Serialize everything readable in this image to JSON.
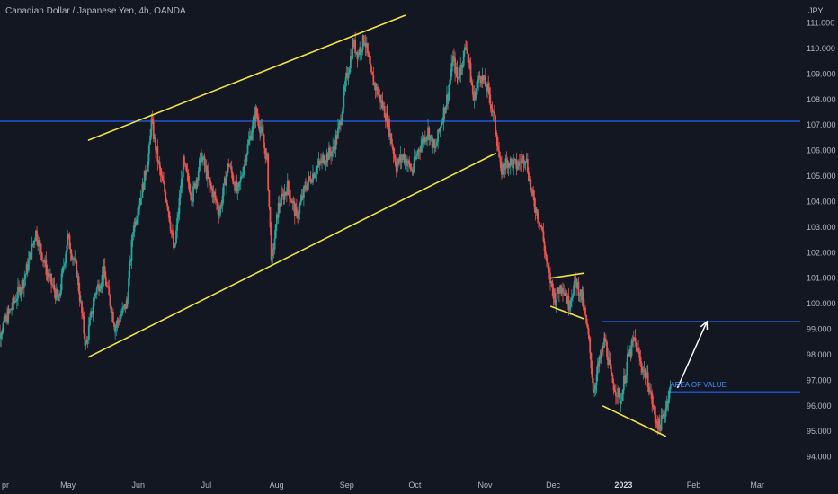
{
  "header": {
    "title": "Canadian Dollar / Japanese Yen, 4h, OANDA",
    "currency": "JPY"
  },
  "colors": {
    "background": "#131722",
    "up_candle": "#26a69a",
    "down_candle": "#ef5350",
    "trendline": "#f0e442",
    "level_line": "#2962ff",
    "arrow": "#ffffff",
    "annotation": "#4a8cff",
    "axis_text": "#b2b5be"
  },
  "chart_data": {
    "type": "candlestick",
    "symbol": "CADJPY",
    "timeframe": "4h",
    "broker": "OANDA",
    "ylim": [
      93.6,
      111.9
    ],
    "y_ticks": [
      {
        "value": 111.0,
        "label": "111.000"
      },
      {
        "value": 110.0,
        "label": "110.000"
      },
      {
        "value": 109.0,
        "label": "109.000"
      },
      {
        "value": 108.0,
        "label": "108.000"
      },
      {
        "value": 107.0,
        "label": "107.000"
      },
      {
        "value": 106.0,
        "label": "106.000"
      },
      {
        "value": 105.0,
        "label": "105.000"
      },
      {
        "value": 104.0,
        "label": "104.000"
      },
      {
        "value": 103.0,
        "label": "103.000"
      },
      {
        "value": 102.0,
        "label": "102.000"
      },
      {
        "value": 101.0,
        "label": "101.000"
      },
      {
        "value": 100.0,
        "label": "100.000"
      },
      {
        "value": 99.0,
        "label": "99.000"
      },
      {
        "value": 98.0,
        "label": "98.000"
      },
      {
        "value": 97.0,
        "label": "97.000"
      },
      {
        "value": 96.0,
        "label": "96.000"
      },
      {
        "value": 95.0,
        "label": "95.000"
      },
      {
        "value": 94.0,
        "label": "94.000"
      }
    ],
    "xlim": [
      "2022-04-01",
      "2023-03-20"
    ],
    "x_ticks": [
      {
        "date": "2022-04-01",
        "label": "pr",
        "bold": false
      },
      {
        "date": "2022-05-01",
        "label": "May",
        "bold": false
      },
      {
        "date": "2022-06-01",
        "label": "Jun",
        "bold": false
      },
      {
        "date": "2022-07-01",
        "label": "Jul",
        "bold": false
      },
      {
        "date": "2022-08-01",
        "label": "Aug",
        "bold": false
      },
      {
        "date": "2022-09-01",
        "label": "Sep",
        "bold": false
      },
      {
        "date": "2022-10-01",
        "label": "Oct",
        "bold": false
      },
      {
        "date": "2022-11-01",
        "label": "Nov",
        "bold": false
      },
      {
        "date": "2022-12-01",
        "label": "Dec",
        "bold": false
      },
      {
        "date": "2023-01-01",
        "label": "2023",
        "bold": true
      },
      {
        "date": "2023-02-01",
        "label": "Feb",
        "bold": false
      },
      {
        "date": "2023-03-01",
        "label": "Mar",
        "bold": false
      }
    ],
    "price_path": [
      [
        "2022-04-01",
        98.3
      ],
      [
        "2022-04-08",
        99.6
      ],
      [
        "2022-04-15",
        101.0
      ],
      [
        "2022-04-20",
        102.8
      ],
      [
        "2022-04-25",
        101.2
      ],
      [
        "2022-04-30",
        100.1
      ],
      [
        "2022-05-04",
        102.6
      ],
      [
        "2022-05-08",
        101.3
      ],
      [
        "2022-05-12",
        98.3
      ],
      [
        "2022-05-16",
        100.4
      ],
      [
        "2022-05-20",
        101.2
      ],
      [
        "2022-05-25",
        99.1
      ],
      [
        "2022-05-30",
        100.0
      ],
      [
        "2022-06-02",
        103.0
      ],
      [
        "2022-06-06",
        104.5
      ],
      [
        "2022-06-09",
        106.0
      ],
      [
        "2022-06-10",
        107.1
      ],
      [
        "2022-06-14",
        105.0
      ],
      [
        "2022-06-17",
        104.0
      ],
      [
        "2022-06-20",
        102.0
      ],
      [
        "2022-06-24",
        105.5
      ],
      [
        "2022-06-28",
        104.2
      ],
      [
        "2022-07-02",
        105.8
      ],
      [
        "2022-07-06",
        104.6
      ],
      [
        "2022-07-10",
        103.6
      ],
      [
        "2022-07-14",
        105.5
      ],
      [
        "2022-07-18",
        104.3
      ],
      [
        "2022-07-22",
        106.0
      ],
      [
        "2022-07-26",
        107.5
      ],
      [
        "2022-07-28",
        106.9
      ],
      [
        "2022-07-31",
        105.6
      ],
      [
        "2022-08-02",
        101.6
      ],
      [
        "2022-08-05",
        103.8
      ],
      [
        "2022-08-09",
        104.6
      ],
      [
        "2022-08-13",
        103.4
      ],
      [
        "2022-08-17",
        104.6
      ],
      [
        "2022-08-21",
        105.2
      ],
      [
        "2022-08-25",
        105.7
      ],
      [
        "2022-08-29",
        106.0
      ],
      [
        "2022-09-01",
        107.0
      ],
      [
        "2022-09-04",
        108.8
      ],
      [
        "2022-09-07",
        110.2
      ],
      [
        "2022-09-09",
        109.8
      ],
      [
        "2022-09-12",
        110.4
      ],
      [
        "2022-09-15",
        108.9
      ],
      [
        "2022-09-19",
        108.0
      ],
      [
        "2022-09-22",
        107.2
      ],
      [
        "2022-09-26",
        105.4
      ],
      [
        "2022-09-29",
        105.8
      ],
      [
        "2022-10-03",
        105.2
      ],
      [
        "2022-10-06",
        106.1
      ],
      [
        "2022-10-10",
        106.8
      ],
      [
        "2022-10-13",
        106.0
      ],
      [
        "2022-10-16",
        107.2
      ],
      [
        "2022-10-19",
        108.3
      ],
      [
        "2022-10-21",
        109.6
      ],
      [
        "2022-10-23",
        108.8
      ],
      [
        "2022-10-27",
        110.2
      ],
      [
        "2022-10-30",
        108.0
      ],
      [
        "2022-11-02",
        109.0
      ],
      [
        "2022-11-06",
        108.2
      ],
      [
        "2022-11-09",
        106.8
      ],
      [
        "2022-11-11",
        105.2
      ],
      [
        "2022-11-14",
        105.6
      ],
      [
        "2022-11-18",
        105.4
      ],
      [
        "2022-11-22",
        105.8
      ],
      [
        "2022-11-25",
        104.2
      ],
      [
        "2022-11-29",
        103.0
      ],
      [
        "2022-12-02",
        101.2
      ],
      [
        "2022-12-05",
        100.2
      ],
      [
        "2022-12-08",
        100.8
      ],
      [
        "2022-12-11",
        100.0
      ],
      [
        "2022-12-14",
        100.9
      ],
      [
        "2022-12-17",
        100.2
      ],
      [
        "2022-12-20",
        98.5
      ],
      [
        "2022-12-22",
        96.6
      ],
      [
        "2022-12-24",
        97.5
      ],
      [
        "2022-12-27",
        98.6
      ],
      [
        "2022-12-30",
        97.0
      ],
      [
        "2023-01-03",
        96.2
      ],
      [
        "2023-01-06",
        97.8
      ],
      [
        "2023-01-09",
        98.6
      ],
      [
        "2023-01-12",
        97.6
      ],
      [
        "2023-01-15",
        97.0
      ],
      [
        "2023-01-18",
        95.6
      ],
      [
        "2023-01-20",
        95.2
      ],
      [
        "2023-01-22",
        95.6
      ],
      [
        "2023-01-24",
        96.4
      ],
      [
        "2023-01-25",
        96.7
      ]
    ],
    "trendlines": [
      {
        "name": "channel-top",
        "from": [
          "2022-05-13",
          106.4
        ],
        "to": [
          "2022-09-30",
          111.3
        ]
      },
      {
        "name": "channel-bottom",
        "from": [
          "2022-05-13",
          97.9
        ],
        "to": [
          "2022-11-09",
          105.9
        ]
      },
      {
        "name": "flag-top",
        "from": [
          "2022-12-03",
          101.0
        ],
        "to": [
          "2022-12-18",
          101.2
        ]
      },
      {
        "name": "flag-bottom",
        "from": [
          "2022-12-03",
          99.9
        ],
        "to": [
          "2022-12-18",
          99.4
        ]
      },
      {
        "name": "wedge-bottom",
        "from": [
          "2022-12-26",
          96.0
        ],
        "to": [
          "2023-01-23",
          94.8
        ]
      }
    ],
    "levels": [
      {
        "name": "resistance-107",
        "value": 107.15,
        "from": "2022-04-01",
        "to": "2023-03-20"
      },
      {
        "name": "target-99",
        "value": 99.3,
        "from": "2022-12-26",
        "to": "2023-03-20"
      },
      {
        "name": "area-of-value",
        "value": 96.55,
        "from": "2023-01-24",
        "to": "2023-03-20"
      }
    ],
    "projection_arrow": {
      "from": [
        "2023-01-28",
        96.7
      ],
      "to": [
        "2023-02-10",
        99.3
      ]
    },
    "annotations": [
      {
        "text": "AREA OF VALUE",
        "date": "2023-01-24",
        "value": 96.8
      }
    ]
  }
}
